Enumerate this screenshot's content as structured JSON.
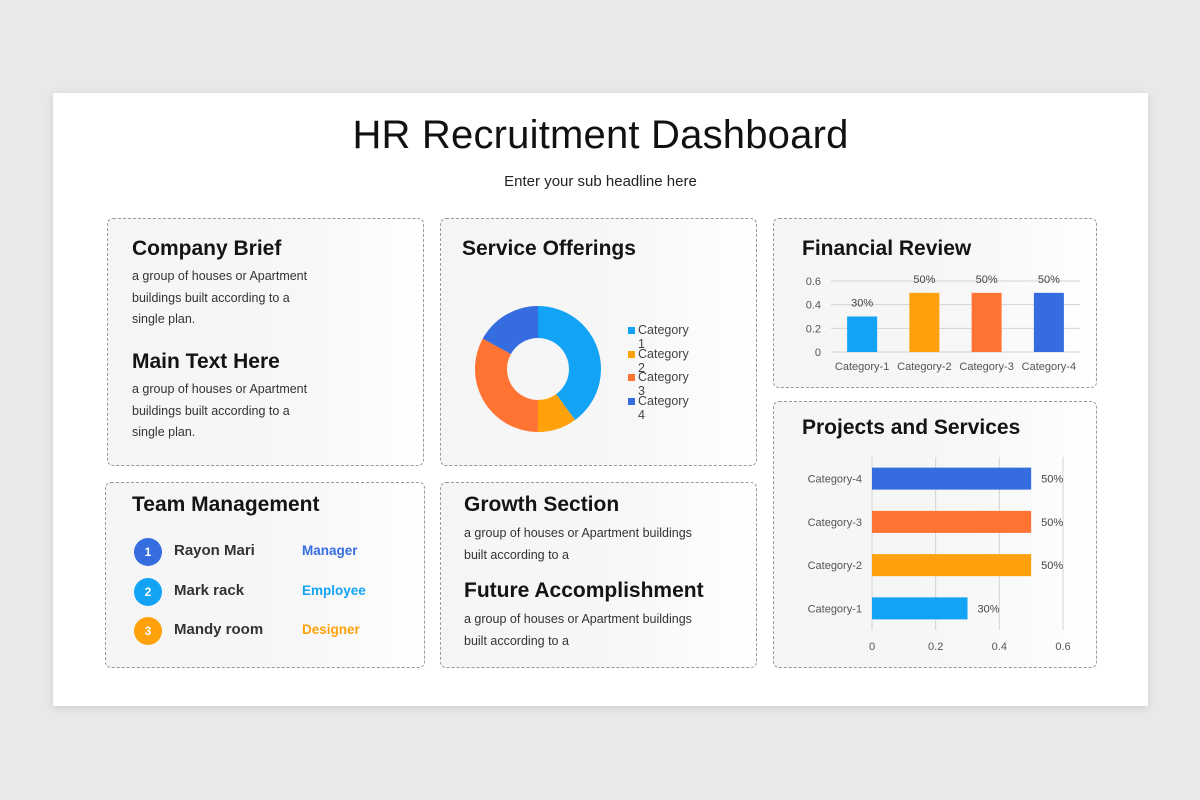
{
  "header": {
    "title": "HR Recruitment Dashboard",
    "subtitle": "Enter your sub headline here"
  },
  "colors": {
    "cat1": "#12a3f5",
    "cat2": "#ffa10a",
    "cat3": "#ff7433",
    "cat4": "#356ce0"
  },
  "company_brief": {
    "title": "Company Brief",
    "text": "a group of houses or Apartment buildings built according to a single plan.",
    "title2": "Main Text Here",
    "text2": "a group of houses or Apartment buildings built according to a single plan."
  },
  "service_offerings": {
    "title": "Service Offerings",
    "legend": [
      "Category 1",
      "Category 2",
      "Category 3",
      "Category 4"
    ]
  },
  "financial_review": {
    "title": "Financial Review"
  },
  "projects_services": {
    "title": "Projects and Services"
  },
  "team": {
    "title": "Team Management",
    "members": [
      {
        "num": "1",
        "name": "Rayon Mari",
        "role": "Manager"
      },
      {
        "num": "2",
        "name": "Mark rack",
        "role": "Employee"
      },
      {
        "num": "3",
        "name": "Mandy room",
        "role": "Designer"
      }
    ]
  },
  "growth": {
    "title": "Growth Section",
    "text": "a group of houses or Apartment buildings built according to a",
    "title2": "Future Accomplishment",
    "text2": "a group of houses or Apartment buildings built according to a"
  },
  "chart_data": [
    {
      "type": "pie",
      "title": "Service Offerings",
      "categories": [
        "Category 1",
        "Category 2",
        "Category 3",
        "Category 4"
      ],
      "values": [
        40,
        10,
        33,
        17
      ],
      "donut": true,
      "legend": "right"
    },
    {
      "type": "bar",
      "title": "Financial Review",
      "categories": [
        "Category-1",
        "Category-2",
        "Category-3",
        "Category-4"
      ],
      "values": [
        0.3,
        0.5,
        0.5,
        0.5
      ],
      "data_labels": [
        "30%",
        "50%",
        "50%",
        "50%"
      ],
      "yticks": [
        "0",
        "0.2",
        "0.4",
        "0.6"
      ],
      "ylim": [
        0,
        0.6
      ],
      "grid": true
    },
    {
      "type": "bar",
      "orientation": "horizontal",
      "title": "Projects and Services",
      "categories": [
        "Category-1",
        "Category-2",
        "Category-3",
        "Category-4"
      ],
      "values": [
        0.3,
        0.5,
        0.5,
        0.5
      ],
      "data_labels": [
        "30%",
        "50%",
        "50%",
        "50%"
      ],
      "xticks": [
        "0",
        "0.2",
        "0.4",
        "0.6"
      ],
      "xlim": [
        0,
        0.6
      ],
      "grid": true
    }
  ]
}
